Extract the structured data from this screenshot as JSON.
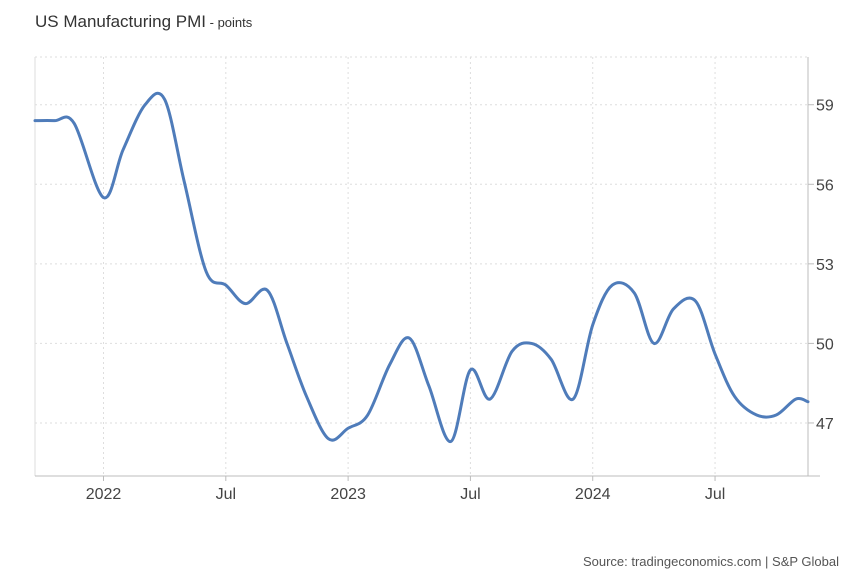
{
  "header": {
    "title": "US Manufacturing PMI",
    "subtitle_sep": " - ",
    "subtitle": "points"
  },
  "footer": {
    "source_prefix": "Source: ",
    "source_site": "tradingeconomics.com",
    "source_sep": " | ",
    "source_org": "S&P Global"
  },
  "colors": {
    "line": "#4f7cba",
    "grid": "#dedede",
    "axis": "#bcbcbc",
    "text": "#444444"
  },
  "chart_data": {
    "type": "line",
    "title": "US Manufacturing PMI",
    "unit": "points",
    "xlabel": "",
    "ylabel": "",
    "y_axis_side": "right",
    "ylim": [
      45.0,
      60.8
    ],
    "yticks": [
      47,
      50,
      53,
      56,
      59
    ],
    "ytick_labels": [
      "47",
      "50",
      "53",
      "56",
      "59"
    ],
    "xlim": [
      2021.72,
      2024.88
    ],
    "xticks": [
      2022.0,
      2022.5,
      2023.0,
      2023.5,
      2024.0,
      2024.5
    ],
    "xtick_labels": [
      "2022",
      "Jul",
      "2023",
      "Jul",
      "2024",
      "Jul"
    ],
    "grid": true,
    "series": [
      {
        "name": "US Manufacturing PMI",
        "x": [
          2021.72,
          2021.8,
          2021.88,
          2022.0,
          2022.08,
          2022.17,
          2022.25,
          2022.33,
          2022.42,
          2022.5,
          2022.58,
          2022.67,
          2022.75,
          2022.83,
          2022.92,
          2023.0,
          2023.08,
          2023.17,
          2023.25,
          2023.33,
          2023.42,
          2023.5,
          2023.58,
          2023.67,
          2023.75,
          2023.83,
          2023.92,
          2024.0,
          2024.08,
          2024.17,
          2024.25,
          2024.33,
          2024.42,
          2024.5,
          2024.58,
          2024.67,
          2024.75,
          2024.83,
          2024.88
        ],
        "values": [
          58.4,
          58.4,
          58.3,
          55.5,
          57.3,
          59.0,
          59.2,
          56.1,
          52.7,
          52.2,
          51.5,
          52.0,
          50.0,
          48.0,
          46.4,
          46.8,
          47.3,
          49.2,
          50.2,
          48.4,
          46.3,
          49.0,
          47.9,
          49.7,
          50.0,
          49.4,
          47.9,
          50.7,
          52.2,
          51.9,
          50.0,
          51.3,
          51.6,
          49.6,
          48.0,
          47.3,
          47.3,
          47.9,
          47.8
        ]
      }
    ]
  }
}
